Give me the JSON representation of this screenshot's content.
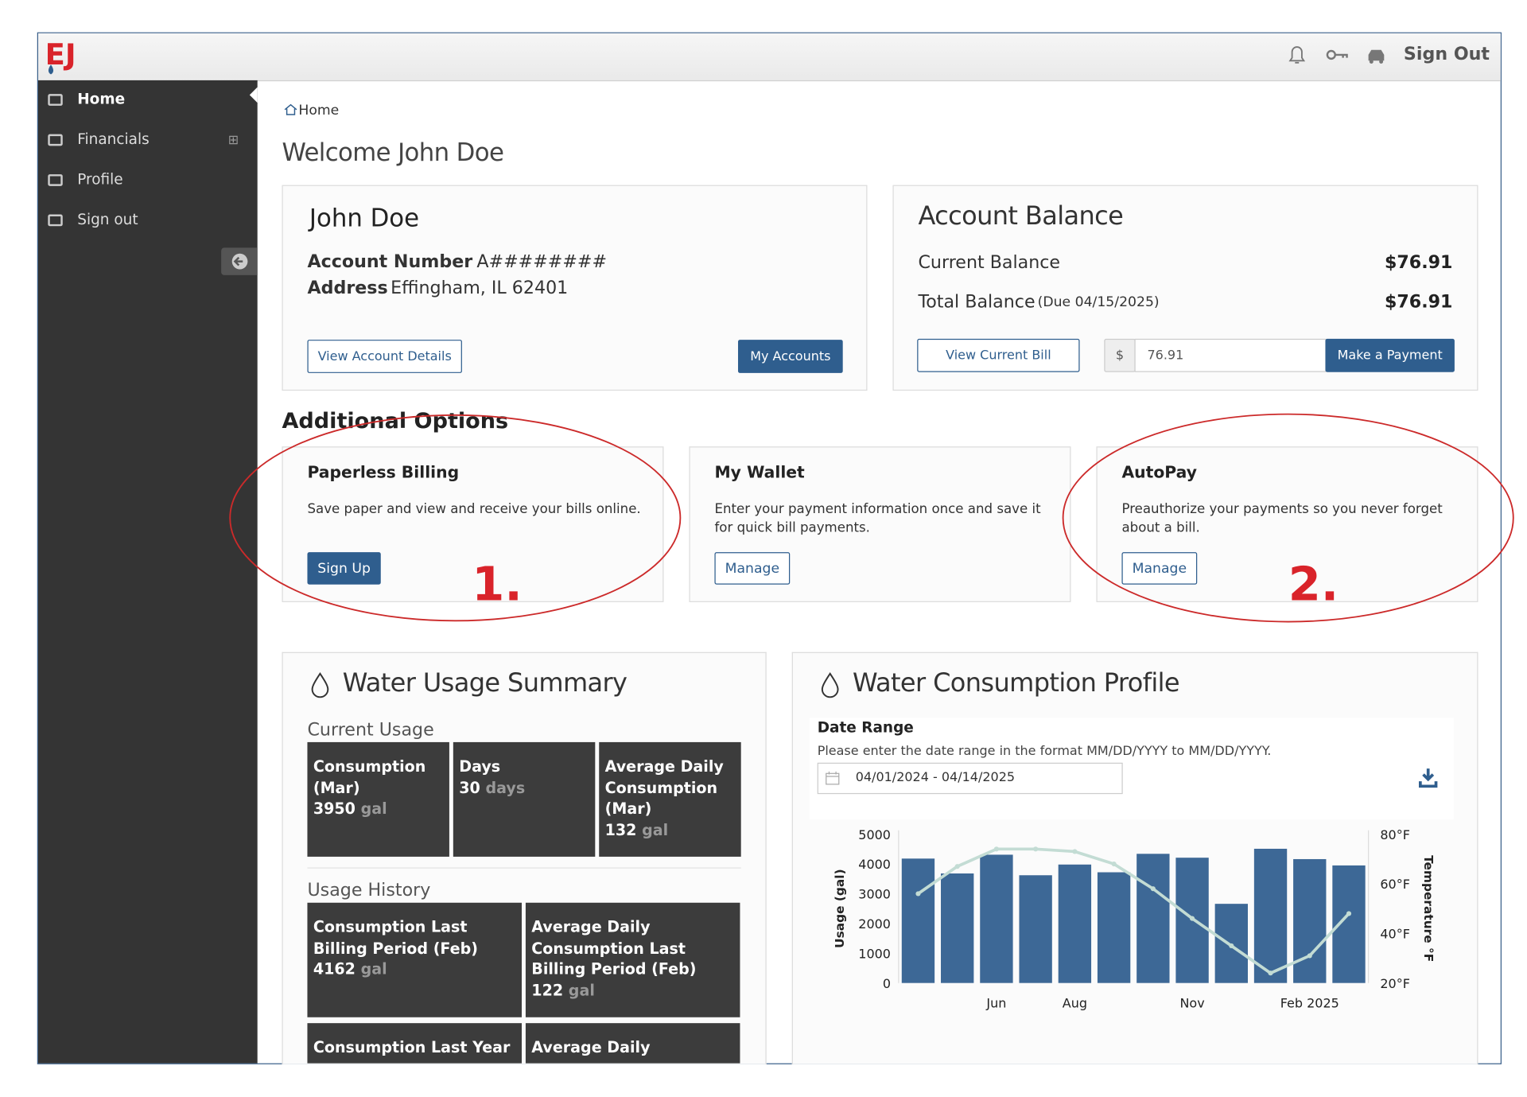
{
  "header": {
    "sign_out": "Sign Out"
  },
  "sidebar": {
    "items": [
      "Home",
      "Financials",
      "Profile",
      "Sign out"
    ]
  },
  "breadcrumb": "Home",
  "welcome": "Welcome John Doe",
  "account": {
    "name": "John Doe",
    "number_label": "Account Number",
    "number": "A########",
    "address_label": "Address",
    "address": "Effingham, IL 62401",
    "details_button": "View Account Details",
    "accounts_button": "My Accounts"
  },
  "balance": {
    "title": "Account Balance",
    "current_label": "Current Balance",
    "current": "$76.91",
    "total_label": "Total Balance",
    "due": "(Due 04/15/2025)",
    "total": "$76.91",
    "view_bill": "View Current Bill",
    "currency": "$",
    "amount": "76.91",
    "pay": "Make a Payment"
  },
  "options": {
    "title": "Additional Options",
    "cards": [
      {
        "title": "Paperless Billing",
        "text": "Save paper and view and receive your bills online.",
        "button": "Sign Up"
      },
      {
        "title": "My Wallet",
        "text": "Enter your payment information once and save it for quick bill payments.",
        "button": "Manage"
      },
      {
        "title": "AutoPay",
        "text": "Preauthorize your payments so you never forget about a bill.",
        "button": "Manage"
      }
    ]
  },
  "annotations": [
    "1.",
    "2."
  ],
  "usage_summary": {
    "title": "Water Usage Summary",
    "current_title": "Current Usage",
    "current": [
      {
        "label": "Consumption (Mar)",
        "value": 3950,
        "unit": "gal"
      },
      {
        "label": "Days",
        "value": 30,
        "unit": "days"
      },
      {
        "label": "Average Daily Consumption (Mar)",
        "value": 132,
        "unit": "gal"
      }
    ],
    "history_title": "Usage History",
    "history": [
      {
        "label": "Consumption Last Billing Period (Feb)",
        "value": 4162,
        "unit": "gal"
      },
      {
        "label": "Average Daily Consumption Last Billing Period (Feb)",
        "value": 122,
        "unit": "gal"
      },
      {
        "label": "Consumption Last Year"
      },
      {
        "label": "Average Daily"
      }
    ]
  },
  "consumption": {
    "title": "Water Consumption Profile",
    "date_label": "Date Range",
    "date_help": "Please enter the date range in the format MM/DD/YYYY to MM/DD/YYYY.",
    "date_value": "04/01/2024 - 04/14/2025"
  },
  "chart_data": {
    "type": "bar",
    "categories": [
      null,
      null,
      "Jun",
      null,
      "Aug",
      null,
      null,
      "Nov",
      null,
      null,
      "Feb 2025",
      null
    ],
    "y_label": "Usage (gal)",
    "y2_label": "Temperature °F",
    "ylim": [
      0,
      5000
    ],
    "yticks": [
      0,
      1000,
      2000,
      3000,
      4000,
      5000
    ],
    "y2lim": [
      20,
      80
    ],
    "y2ticks": [
      {
        "value": 20,
        "label": "20°F"
      },
      {
        "value": 40,
        "label": "40°F"
      },
      {
        "value": 60,
        "label": "60°F"
      },
      {
        "value": 80,
        "label": "80°F"
      }
    ],
    "series": [
      {
        "type": "bar",
        "color": "#3d6896",
        "values": [
          4180,
          3680,
          4310,
          3620,
          3980,
          3720,
          4340,
          4210,
          2660,
          4510,
          4162,
          3950
        ]
      },
      {
        "type": "line",
        "axis": "y2",
        "color": "#c3dcd4",
        "values": [
          56,
          67,
          74,
          74,
          73,
          68,
          58,
          46,
          35,
          24,
          31,
          48
        ]
      }
    ]
  }
}
